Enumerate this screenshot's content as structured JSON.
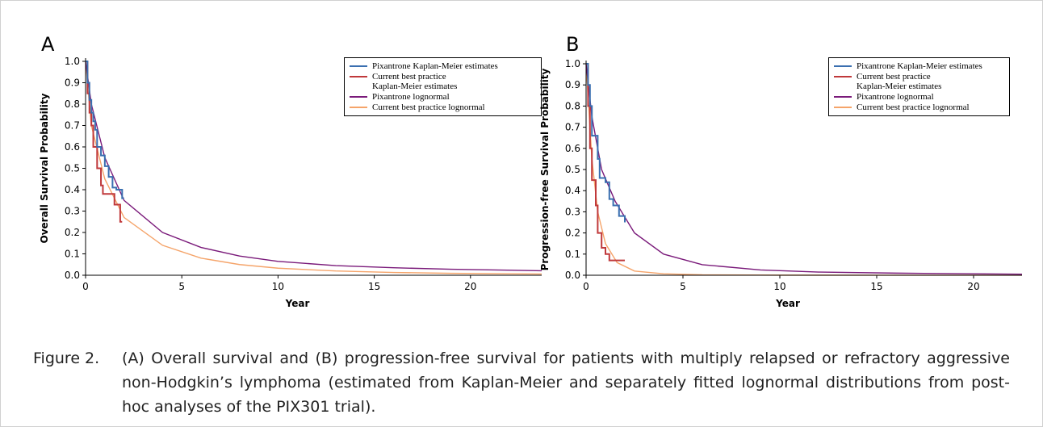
{
  "chart_data": [
    {
      "type": "line",
      "panel": "A",
      "x_label": "Year",
      "y_label": "Overall Survival Probability",
      "xlim": [
        0,
        23.7
      ],
      "ylim": [
        0,
        1
      ],
      "xticks": [
        0,
        5,
        10,
        15,
        20
      ],
      "yticks": [
        {
          "value": 0,
          "label": "0.0"
        },
        0.1,
        0.2,
        0.3,
        0.4,
        0.5,
        0.6,
        0.7,
        0.8,
        0.9,
        {
          "value": 1,
          "label": "1.0"
        }
      ],
      "series": [
        {
          "name": "Pixantrone Kaplan-Meier estimates",
          "color": "#3a6fb0",
          "step": true,
          "x": [
            0,
            0.1,
            0.2,
            0.3,
            0.4,
            0.5,
            0.6,
            0.8,
            1.0,
            1.2,
            1.4,
            1.6,
            1.9,
            2.0
          ],
          "values": [
            1.0,
            0.9,
            0.82,
            0.76,
            0.72,
            0.68,
            0.6,
            0.56,
            0.51,
            0.46,
            0.41,
            0.4,
            0.36,
            0.36
          ]
        },
        {
          "name": "Current best practice\nKaplan-Meier estimates",
          "color": "#c0393b",
          "step": true,
          "x": [
            0,
            0.1,
            0.2,
            0.3,
            0.4,
            0.6,
            0.8,
            0.9,
            1.5,
            1.8,
            1.9
          ],
          "values": [
            1.0,
            0.85,
            0.76,
            0.7,
            0.6,
            0.5,
            0.42,
            0.38,
            0.33,
            0.25,
            0.25
          ]
        },
        {
          "name": "Pixantrone lognormal",
          "color": "#7a1a7a",
          "step": false,
          "x": [
            0,
            0.3,
            1,
            2,
            4,
            6,
            8,
            10,
            13,
            16,
            19,
            23.7
          ],
          "values": [
            1.0,
            0.8,
            0.55,
            0.35,
            0.2,
            0.13,
            0.09,
            0.065,
            0.045,
            0.035,
            0.028,
            0.021
          ]
        },
        {
          "name": "Current best practice lognormal",
          "color": "#f5a46a",
          "step": false,
          "x": [
            0,
            0.3,
            1,
            2,
            4,
            6,
            8,
            10,
            13,
            16,
            19,
            23.7
          ],
          "values": [
            1.0,
            0.7,
            0.45,
            0.27,
            0.14,
            0.08,
            0.05,
            0.033,
            0.02,
            0.013,
            0.009,
            0.006
          ]
        }
      ]
    },
    {
      "type": "line",
      "panel": "B",
      "x_label": "Year",
      "y_label": "Progression-free Survival Probability",
      "xlim": [
        0,
        22.5
      ],
      "ylim": [
        0,
        1
      ],
      "xticks": [
        0,
        5,
        10,
        15,
        20
      ],
      "yticks": [
        {
          "value": 0,
          "label": "0.0"
        },
        0.1,
        0.2,
        0.3,
        0.4,
        0.5,
        0.6,
        0.7,
        0.8,
        0.9,
        {
          "value": 1,
          "label": "1.0"
        }
      ],
      "series": [
        {
          "name": "Pixantrone Kaplan-Meier estimates",
          "color": "#3a6fb0",
          "step": true,
          "x": [
            0,
            0.1,
            0.2,
            0.3,
            0.6,
            0.7,
            1.0,
            1.2,
            1.4,
            1.7,
            2.0
          ],
          "values": [
            1.0,
            0.9,
            0.8,
            0.66,
            0.55,
            0.46,
            0.44,
            0.36,
            0.33,
            0.28,
            0.25
          ]
        },
        {
          "name": "Current best practice\nKaplan-Meier estimates",
          "color": "#c0393b",
          "step": true,
          "x": [
            0,
            0.1,
            0.2,
            0.3,
            0.5,
            0.6,
            0.8,
            1.0,
            1.2,
            2.0
          ],
          "values": [
            1.0,
            0.8,
            0.6,
            0.45,
            0.33,
            0.2,
            0.13,
            0.1,
            0.07,
            0.07
          ]
        },
        {
          "name": "Pixantrone lognormal",
          "color": "#7a1a7a",
          "step": false,
          "x": [
            0,
            0.3,
            0.8,
            1.5,
            2.5,
            4,
            6,
            9,
            12,
            16,
            20,
            22.5
          ],
          "values": [
            1.0,
            0.75,
            0.5,
            0.35,
            0.2,
            0.1,
            0.05,
            0.025,
            0.015,
            0.01,
            0.007,
            0.005
          ]
        },
        {
          "name": "Current best practice lognormal",
          "color": "#f5a46a",
          "step": false,
          "x": [
            0,
            0.3,
            0.6,
            1,
            1.6,
            2.5,
            4,
            6,
            10,
            22.5
          ],
          "values": [
            1.0,
            0.55,
            0.3,
            0.15,
            0.06,
            0.02,
            0.007,
            0.002,
            0.0005,
            0.0001
          ]
        }
      ]
    }
  ],
  "caption": {
    "label": "Figure 2.",
    "text": "(A) Overall survival and (B) progression-free survival for patients with multiply relapsed or refractory aggressive non-Hodgkin’s lymphoma (estimated from Kaplan-Meier and separately fitted lognormal distributions from post-hoc analyses of the PIX301 trial)."
  }
}
